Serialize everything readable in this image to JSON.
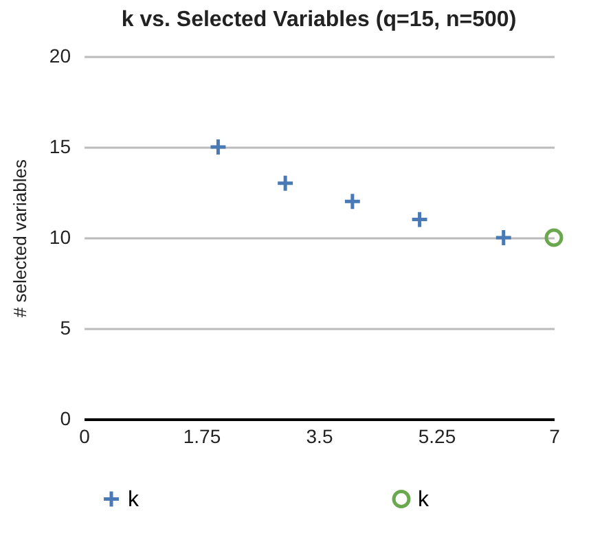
{
  "chart_data": {
    "type": "scatter",
    "title": "k vs. Selected Variables (q=15, n=500)",
    "ylabel": "# selected variables",
    "xlim": [
      0,
      7
    ],
    "xticks": [
      0,
      1.75,
      3.5,
      5.25,
      7
    ],
    "ylim": [
      0,
      20
    ],
    "yticks": [
      0,
      5,
      10,
      15,
      20
    ],
    "grid": "y",
    "legend": "bottom",
    "series": [
      {
        "name": "k",
        "color": "#4a7ab5",
        "marker": "cross",
        "x": [
          2,
          3,
          4,
          5,
          6.25
        ],
        "values": [
          15,
          13,
          12,
          11,
          10
        ]
      },
      {
        "name": "k",
        "color": "#6aa84f",
        "marker": "circle",
        "x": [
          7
        ],
        "values": [
          10
        ]
      }
    ]
  }
}
